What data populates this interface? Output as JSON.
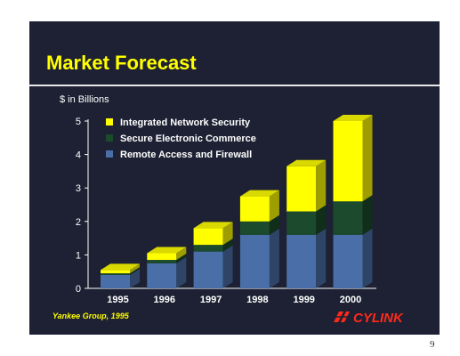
{
  "slide": {
    "title": "Market Forecast",
    "source": "Yankee Group, 1995",
    "logo_text": "CYLINK",
    "page_number": "9"
  },
  "chart_data": {
    "type": "bar",
    "stacked": true,
    "ylabel": "$ in Billions",
    "xlabel": "",
    "ylim": [
      0,
      5
    ],
    "yticks": [
      0,
      1,
      2,
      3,
      4,
      5
    ],
    "categories": [
      "1995",
      "1996",
      "1997",
      "1998",
      "1999",
      "2000"
    ],
    "series": [
      {
        "name": "Remote Access and Firewall",
        "color": "#4a6fa8",
        "values": [
          0.4,
          0.75,
          1.1,
          1.6,
          1.6,
          1.6
        ]
      },
      {
        "name": "Secure Electronic Commerce",
        "color": "#1c4a2c",
        "values": [
          0.05,
          0.1,
          0.2,
          0.4,
          0.7,
          1.0
        ]
      },
      {
        "name": "Integrated Network Security",
        "color": "#ffff00",
        "values": [
          0.1,
          0.2,
          0.5,
          0.75,
          1.35,
          2.4
        ]
      }
    ],
    "legend_order": [
      "Integrated Network Security",
      "Secure Electronic Commerce",
      "Remote Access and Firewall"
    ],
    "legend_position": "top-left",
    "grid": false,
    "style": "3d"
  }
}
